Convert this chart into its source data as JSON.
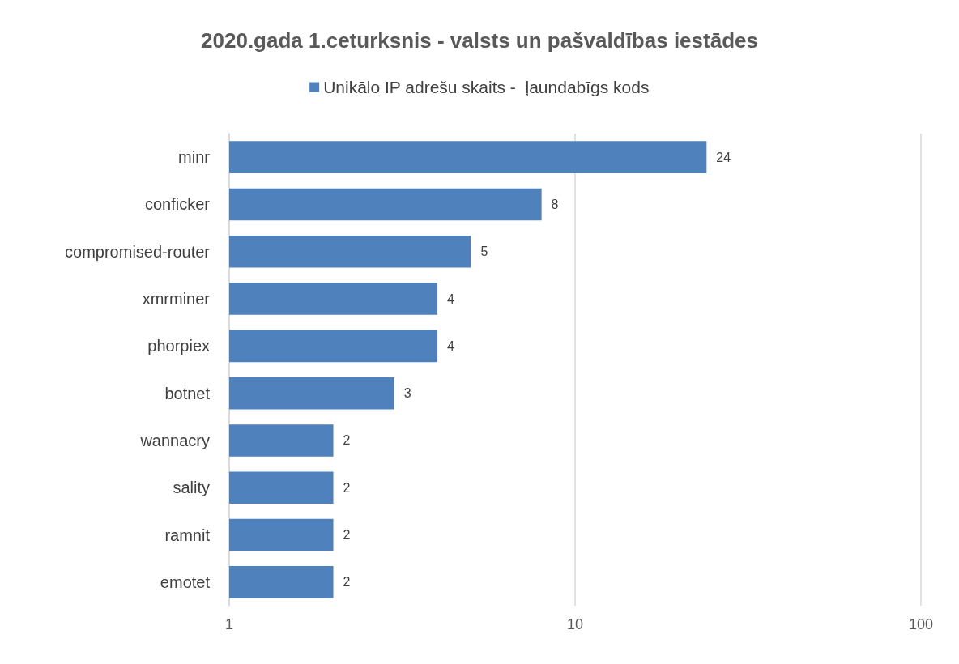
{
  "chart_data": {
    "type": "bar",
    "orientation": "horizontal",
    "title": "2020.gada 1.ceturksnis - valsts un pašvaldības iestādes",
    "categories": [
      "minr",
      "conficker",
      "compromised-router",
      "xmrminer",
      "phorpiex",
      "botnet",
      "wannacry",
      "sality",
      "ramnit",
      "emotet"
    ],
    "series": [
      {
        "name": "Unikālo IP adrešu skaits -  ļaundabīgs kods",
        "color": "#4f81bd",
        "values": [
          24,
          8,
          5,
          4,
          4,
          3,
          2,
          2,
          2,
          2
        ]
      }
    ],
    "log": "x",
    "xlim": [
      1,
      100
    ],
    "xticks": [
      1,
      10,
      100
    ],
    "grid": "x",
    "legend": "top",
    "data_labels": true
  }
}
